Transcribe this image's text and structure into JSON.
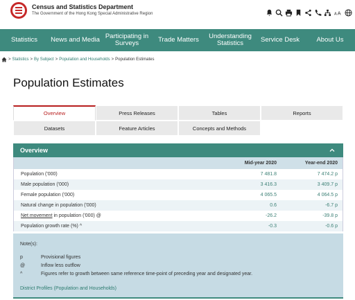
{
  "header": {
    "dept_name": "Census and Statistics Department",
    "dept_sub": "The Government of the Hong Kong Special Administrative Region",
    "tools": [
      {
        "icon": "bell-icon",
        "glyph": "🔔"
      },
      {
        "icon": "search-icon",
        "glyph": "🔍"
      },
      {
        "icon": "print-icon",
        "glyph": "🖨"
      },
      {
        "icon": "bookmark-icon",
        "glyph": "🔖"
      },
      {
        "icon": "share-icon",
        "glyph": "<"
      },
      {
        "icon": "phone-icon",
        "glyph": "☎"
      },
      {
        "icon": "sitemap-icon",
        "glyph": "⋮"
      },
      {
        "icon": "font-size-icon",
        "glyph": "AA"
      },
      {
        "icon": "globe-icon",
        "glyph": "🌐"
      }
    ]
  },
  "nav": [
    {
      "label": "Statistics",
      "width": 70
    },
    {
      "label": "News and Media",
      "width": 77
    },
    {
      "label": "Participating in Surveys",
      "width": 72
    },
    {
      "label": "Trade Matters",
      "width": 77
    },
    {
      "label": "Understanding Statistics",
      "width": 72
    },
    {
      "label": "Service Desk",
      "width": 72
    },
    {
      "label": "About Us",
      "width": 72
    }
  ],
  "breadcrumb": {
    "items": [
      "Statistics",
      "By Subject",
      "Population and Households"
    ],
    "current": "Population Estimates",
    "sep": ">"
  },
  "page_title": "Population Estimates",
  "tabs": [
    {
      "label": "Overview",
      "active": true
    },
    {
      "label": "Press Releases",
      "active": false
    },
    {
      "label": "Tables",
      "active": false
    },
    {
      "label": "Reports",
      "active": false
    },
    {
      "label": "Datasets",
      "active": false
    },
    {
      "label": "Feature Articles",
      "active": false
    },
    {
      "label": "Concepts and Methods",
      "active": false
    }
  ],
  "overview": {
    "title": "Overview",
    "columns": [
      "",
      "Mid-year 2020",
      "Year-end 2020"
    ],
    "rows": [
      {
        "label": "Population ('000)",
        "mid": "7 481.8",
        "end": "7 474.2 p"
      },
      {
        "label": "Male population ('000)",
        "mid": "3 416.3",
        "end": "3 409.7 p"
      },
      {
        "label": "Female population ('000)",
        "mid": "4 065.5",
        "end": "4 064.5 p"
      },
      {
        "label": "Natural change in population ('000)",
        "mid": "0.6",
        "end": "-6.7 p"
      },
      {
        "label": "Net movement in population ('000) @",
        "mid": "-26.2",
        "end": "-39.8 p"
      },
      {
        "label": "Population growth rate (%) ^",
        "mid": "-0.3",
        "end": "-0.6 p"
      }
    ],
    "notes_title": "Note(s):",
    "notes": [
      {
        "sym": "p",
        "text": "Provisional figures"
      },
      {
        "sym": "@",
        "text": "Inflow less outflow"
      },
      {
        "sym": "^",
        "text": "Figures refer to growth between same reference time-point of preceding year and designated year."
      }
    ],
    "link": "District Profiles (Population and Households)"
  },
  "colors": {
    "accent": "#3e8a7e",
    "active_tab": "#b71c1c",
    "notes_bg": "#c6dbe4"
  }
}
